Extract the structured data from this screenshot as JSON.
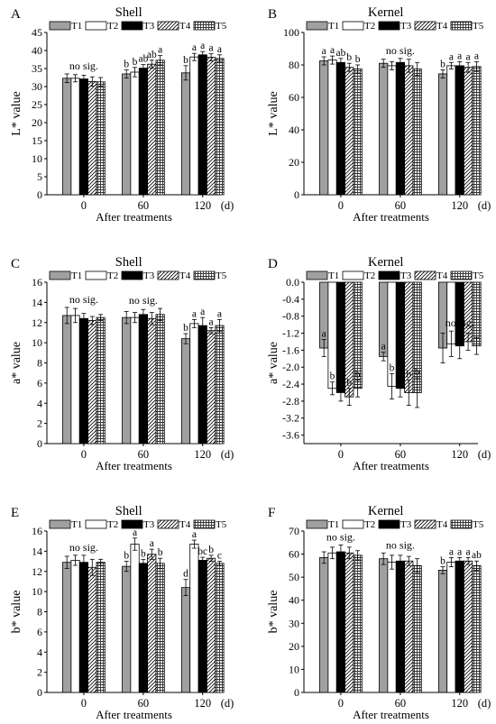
{
  "colors": {
    "T1": "#a0a0a0",
    "T2": "#ffffff",
    "T3": "#000000",
    "T4": "hatch-diagonal",
    "T5": "crosshatch-grid"
  },
  "chart_data": [
    {
      "panel": "A",
      "title": "Shell",
      "type": "bar",
      "ylabel": "L* value",
      "xlabel": "After treatments",
      "x_unit": "(d)",
      "ylim": [
        0,
        45
      ],
      "yticks": [
        0,
        5,
        10,
        15,
        20,
        25,
        30,
        35,
        40,
        45
      ],
      "categories": [
        "0",
        "60",
        "120"
      ],
      "series": [
        {
          "name": "T1",
          "values": [
            32.3,
            33.5,
            33.8
          ],
          "errors": [
            1.2,
            1.1,
            2.0
          ]
        },
        {
          "name": "T2",
          "values": [
            32.3,
            34.0,
            38.2
          ],
          "errors": [
            1.0,
            1.3,
            1.0
          ]
        },
        {
          "name": "T3",
          "values": [
            32.1,
            35.1,
            38.8
          ],
          "errors": [
            1.0,
            1.0,
            0.9
          ]
        },
        {
          "name": "T4",
          "values": [
            31.4,
            36.2,
            38.1
          ],
          "errors": [
            1.3,
            1.1,
            1.0
          ]
        },
        {
          "name": "T5",
          "values": [
            31.3,
            37.3,
            37.8
          ],
          "errors": [
            1.2,
            1.3,
            1.0
          ]
        }
      ],
      "group_notes": [
        "no sig.",
        "",
        ""
      ],
      "letters": [
        [
          "",
          "",
          "",
          "",
          ""
        ],
        [
          "b",
          "b",
          "ab",
          "ab",
          "a"
        ],
        [
          "b",
          "a",
          "a",
          "a",
          "a"
        ]
      ]
    },
    {
      "panel": "B",
      "title": "Kernel",
      "type": "bar",
      "ylabel": "L* value",
      "xlabel": "After treatments",
      "x_unit": "(d)",
      "ylim": [
        0,
        100
      ],
      "yticks": [
        0,
        20,
        40,
        60,
        80,
        100
      ],
      "categories": [
        "0",
        "60",
        "120"
      ],
      "series": [
        {
          "name": "T1",
          "values": [
            82.5,
            81.0,
            74.5
          ],
          "errors": [
            2.5,
            2.5,
            2.5
          ]
        },
        {
          "name": "T2",
          "values": [
            83.0,
            79.5,
            79.5
          ],
          "errors": [
            2.5,
            2.5,
            2.0
          ]
        },
        {
          "name": "T3",
          "values": [
            81.5,
            81.5,
            79.5
          ],
          "errors": [
            2.5,
            2.5,
            2.5
          ]
        },
        {
          "name": "T4",
          "values": [
            78.5,
            79.5,
            78.5
          ],
          "errors": [
            2.5,
            4.0,
            3.0
          ]
        },
        {
          "name": "T5",
          "values": [
            77.5,
            77.5,
            79.0
          ],
          "errors": [
            2.5,
            4.0,
            3.0
          ]
        }
      ],
      "group_notes": [
        "",
        "no sig.",
        ""
      ],
      "letters": [
        [
          "a",
          "a",
          "ab",
          "b",
          "b"
        ],
        [
          "",
          "",
          "",
          "",
          ""
        ],
        [
          "b",
          "a",
          "a",
          "a",
          "a"
        ]
      ]
    },
    {
      "panel": "C",
      "title": "Shell",
      "type": "bar",
      "ylabel": "a* value",
      "xlabel": "After treatments",
      "x_unit": "(d)",
      "ylim": [
        0,
        16
      ],
      "yticks": [
        0,
        2,
        4,
        6,
        8,
        10,
        12,
        14,
        16
      ],
      "categories": [
        "0",
        "60",
        "120"
      ],
      "series": [
        {
          "name": "T1",
          "values": [
            12.7,
            12.5,
            10.4
          ],
          "errors": [
            0.8,
            0.6,
            0.5
          ]
        },
        {
          "name": "T2",
          "values": [
            12.7,
            12.5,
            11.9
          ],
          "errors": [
            0.7,
            0.5,
            0.4
          ]
        },
        {
          "name": "T3",
          "values": [
            12.4,
            12.8,
            11.7
          ],
          "errors": [
            0.5,
            0.5,
            0.8
          ]
        },
        {
          "name": "T4",
          "values": [
            12.2,
            12.4,
            11.2
          ],
          "errors": [
            0.4,
            0.6,
            0.3
          ]
        },
        {
          "name": "T5",
          "values": [
            12.5,
            12.8,
            11.7
          ],
          "errors": [
            0.3,
            0.6,
            0.6
          ]
        }
      ],
      "group_notes": [
        "no sig.",
        "no sig.",
        ""
      ],
      "letters": [
        [
          "",
          "",
          "",
          "",
          ""
        ],
        [
          "",
          "",
          "",
          "",
          ""
        ],
        [
          "b",
          "a",
          "a",
          "a",
          "a"
        ]
      ]
    },
    {
      "panel": "D",
      "title": "Kernel",
      "type": "bar",
      "ylabel": "a* value",
      "xlabel": "After treatments",
      "x_unit": "(d)",
      "ylim": [
        -3.8,
        0.0
      ],
      "yticks": [
        0.0,
        -0.4,
        -0.8,
        -1.2,
        -1.6,
        -2.0,
        -2.4,
        -2.8,
        -3.2,
        -3.6
      ],
      "tick_labels": [
        "0.0",
        "-0.4",
        "-0.8",
        "-1.2",
        "-1.6",
        "-2.0",
        "-2.4",
        "-2.8",
        "-3.2",
        "-3.6"
      ],
      "categories": [
        "0",
        "60",
        "120"
      ],
      "series": [
        {
          "name": "T1",
          "values": [
            -1.55,
            -1.75,
            -1.55
          ],
          "errors": [
            0.2,
            0.1,
            0.35
          ]
        },
        {
          "name": "T2",
          "values": [
            -2.5,
            -2.45,
            -1.45
          ],
          "errors": [
            0.15,
            0.3,
            0.3
          ]
        },
        {
          "name": "T3",
          "values": [
            -2.6,
            -2.5,
            -1.5
          ],
          "errors": [
            0.2,
            0.2,
            0.3
          ]
        },
        {
          "name": "T4",
          "values": [
            -2.7,
            -2.6,
            -1.4
          ],
          "errors": [
            0.2,
            0.3,
            0.2
          ]
        },
        {
          "name": "T5",
          "values": [
            -2.5,
            -2.6,
            -1.5
          ],
          "errors": [
            0.2,
            0.35,
            0.2
          ]
        }
      ],
      "group_notes": [
        "",
        "",
        "no sig."
      ],
      "letters": [
        [
          "a",
          "b",
          "b",
          "b",
          "b"
        ],
        [
          "a",
          "b",
          "b",
          "b",
          "b"
        ],
        [
          "",
          "",
          "",
          "",
          ""
        ]
      ]
    },
    {
      "panel": "E",
      "title": "Shell",
      "type": "bar",
      "ylabel": "b* value",
      "xlabel": "After treatments",
      "x_unit": "(d)",
      "ylim": [
        0,
        16
      ],
      "yticks": [
        0,
        2,
        4,
        6,
        8,
        10,
        12,
        14,
        16
      ],
      "categories": [
        "0",
        "60",
        "120"
      ],
      "series": [
        {
          "name": "T1",
          "values": [
            12.9,
            12.5,
            10.4
          ],
          "errors": [
            0.6,
            0.5,
            0.8
          ]
        },
        {
          "name": "T2",
          "values": [
            13.1,
            14.7,
            14.7
          ],
          "errors": [
            0.5,
            0.6,
            0.4
          ]
        },
        {
          "name": "T3",
          "values": [
            12.9,
            12.8,
            13.1
          ],
          "errors": [
            0.7,
            0.4,
            0.3
          ]
        },
        {
          "name": "T4",
          "values": [
            12.4,
            13.7,
            13.3
          ],
          "errors": [
            0.8,
            0.5,
            0.3
          ]
        },
        {
          "name": "T5",
          "values": [
            12.9,
            12.8,
            12.8
          ],
          "errors": [
            0.3,
            0.5,
            0.2
          ]
        }
      ],
      "group_notes": [
        "no sig.",
        "",
        ""
      ],
      "letters": [
        [
          "",
          "",
          "",
          "",
          ""
        ],
        [
          "b",
          "a",
          "b",
          "a",
          "b"
        ],
        [
          "d",
          "a",
          "bc",
          "b",
          "c"
        ]
      ]
    },
    {
      "panel": "F",
      "title": "Kernel",
      "type": "bar",
      "ylabel": "b* value",
      "xlabel": "After treatments",
      "x_unit": "(d)",
      "ylim": [
        0,
        70
      ],
      "yticks": [
        0,
        10,
        20,
        30,
        40,
        50,
        60,
        70
      ],
      "categories": [
        "0",
        "60",
        "120"
      ],
      "series": [
        {
          "name": "T1",
          "values": [
            58.5,
            58.0,
            53.0
          ],
          "errors": [
            2.5,
            2.5,
            1.5
          ]
        },
        {
          "name": "T2",
          "values": [
            60.5,
            56.5,
            56.5
          ],
          "errors": [
            2.5,
            3.0,
            2.0
          ]
        },
        {
          "name": "T3",
          "values": [
            61.0,
            57.0,
            57.0
          ],
          "errors": [
            3.0,
            2.5,
            1.5
          ]
        },
        {
          "name": "T4",
          "values": [
            60.5,
            57.0,
            57.0
          ],
          "errors": [
            2.5,
            2.0,
            1.5
          ]
        },
        {
          "name": "T5",
          "values": [
            59.5,
            55.0,
            55.0
          ],
          "errors": [
            2.0,
            3.0,
            2.0
          ]
        }
      ],
      "group_notes": [
        "no sig.",
        "no sig.",
        ""
      ],
      "letters": [
        [
          "",
          "",
          "",
          "",
          ""
        ],
        [
          "",
          "",
          "",
          "",
          ""
        ],
        [
          "b",
          "a",
          "a",
          "a",
          "ab"
        ]
      ]
    }
  ]
}
